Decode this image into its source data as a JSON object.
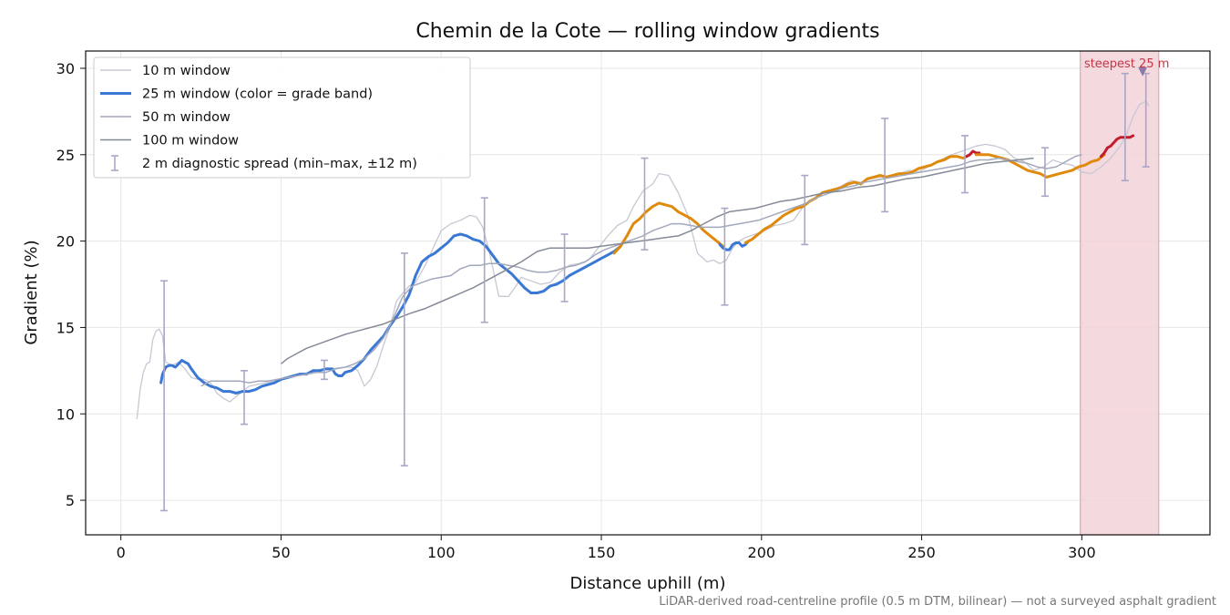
{
  "chart_data": {
    "type": "line",
    "title": "Chemin de la Cote — rolling window gradients",
    "xlabel": "Distance uphill (m)",
    "ylabel": "Gradient (%)",
    "xlim": [
      -11,
      340
    ],
    "ylim": [
      3,
      31
    ],
    "xticks": [
      0,
      50,
      100,
      150,
      200,
      250,
      300
    ],
    "yticks": [
      5,
      10,
      15,
      20,
      25,
      30
    ],
    "grid": true,
    "legend_position": "top-left",
    "footnote": "LiDAR-derived road-centreline profile (0.5 m DTM, bilinear) — not a surveyed asphalt gradient",
    "colors": {
      "w10": "#c8c8d4",
      "w50": "#a3a9bb",
      "w100": "#858a98",
      "band_blue": "#3a78d4",
      "band_orange": "#df8a0d",
      "band_red": "#c01e2e",
      "spread": "#a9a6c6",
      "highlight_fill": "#f2d2d8",
      "highlight_edge": "#e2a9b2",
      "marker": "#8c7aa8",
      "annotation": "#c53545"
    },
    "legend": [
      {
        "key": "w10",
        "label": "10 m window"
      },
      {
        "key": "w25",
        "label": "25 m window (color = grade band)"
      },
      {
        "key": "w50",
        "label": "50 m window"
      },
      {
        "key": "w100",
        "label": "100 m window"
      },
      {
        "key": "spread",
        "label": "2 m diagnostic spread (min–max, ±12 m)"
      }
    ],
    "highlight": {
      "label": "steepest 25 m",
      "x_start": 299.5,
      "x_end": 324,
      "marker_x": 319,
      "marker_y": 29.8
    },
    "series": [
      {
        "name": "10 m window",
        "key": "w10",
        "x": [
          5,
          6,
          7,
          8,
          9,
          10,
          11,
          12,
          13,
          14,
          16,
          18,
          20,
          22,
          24,
          26,
          28,
          30,
          32,
          34,
          36,
          38,
          40,
          45,
          50,
          55,
          60,
          65,
          70,
          72,
          74,
          76,
          78,
          80,
          82,
          84,
          86,
          88,
          90,
          92,
          95,
          98,
          100,
          103,
          106,
          109,
          111,
          113,
          115,
          118,
          121,
          123,
          125,
          128,
          131,
          134,
          137,
          140,
          143,
          146,
          149,
          152,
          155,
          158,
          160,
          163,
          166,
          168,
          171,
          174,
          177,
          180,
          183,
          185,
          187,
          189,
          191,
          193,
          195,
          198,
          201,
          204,
          207,
          210,
          213,
          216,
          219,
          222,
          225,
          228,
          231,
          234,
          237,
          240,
          243,
          246,
          249,
          252,
          255,
          258,
          261,
          264,
          267,
          270,
          273,
          276,
          279,
          282,
          285,
          288,
          291,
          294,
          297,
          300,
          303,
          306,
          309,
          312,
          314,
          316,
          318,
          320,
          321
        ],
        "y": [
          9.7,
          11.4,
          12.4,
          12.9,
          13.0,
          14.3,
          14.8,
          14.9,
          14.5,
          13.0,
          12.8,
          13.0,
          12.6,
          12.1,
          12.0,
          12.0,
          11.8,
          11.2,
          10.9,
          10.7,
          11.0,
          11.3,
          11.6,
          11.8,
          12.0,
          12.2,
          12.4,
          12.6,
          12.7,
          12.7,
          12.5,
          11.6,
          12.0,
          12.8,
          14.0,
          15.0,
          16.5,
          17.0,
          17.4,
          17.6,
          18.6,
          19.8,
          20.6,
          21.0,
          21.2,
          21.5,
          21.4,
          20.8,
          19.4,
          16.8,
          16.8,
          17.3,
          17.9,
          17.7,
          17.5,
          17.6,
          18.2,
          18.6,
          18.7,
          18.9,
          19.6,
          20.3,
          20.9,
          21.2,
          22.0,
          22.9,
          23.3,
          23.9,
          23.8,
          22.8,
          21.5,
          19.3,
          18.8,
          18.9,
          18.7,
          18.9,
          19.6,
          20.0,
          20.2,
          20.4,
          20.6,
          20.9,
          21.0,
          21.2,
          22.0,
          22.4,
          22.8,
          22.9,
          23.2,
          23.5,
          23.4,
          23.6,
          23.7,
          23.8,
          23.9,
          24.1,
          24.0,
          24.3,
          24.6,
          24.9,
          25.1,
          25.3,
          25.5,
          25.6,
          25.5,
          25.3,
          24.8,
          24.6,
          24.1,
          24.3,
          24.7,
          24.5,
          24.4,
          24.0,
          23.9,
          24.3,
          24.8,
          25.5,
          26.2,
          27.2,
          27.9,
          28.1,
          27.8
        ]
      },
      {
        "name": "25 m window (color = grade band)",
        "key": "w25",
        "segments": [
          {
            "band": "blue",
            "x": [
              12.5,
              13,
              14,
              15,
              16,
              17,
              18,
              19,
              20,
              21,
              22,
              24,
              26,
              28,
              30,
              32,
              34,
              36,
              38,
              40,
              42,
              44,
              46,
              48,
              50,
              52,
              54,
              56,
              58,
              60,
              62,
              64,
              65,
              66,
              67,
              68,
              69,
              70,
              72,
              74,
              76,
              78,
              80,
              82,
              84,
              86,
              88,
              90,
              92,
              94,
              96,
              98,
              100,
              102,
              104,
              106,
              108,
              110,
              112,
              114,
              116,
              118,
              120,
              122,
              124,
              126,
              128,
              130,
              132,
              134,
              136,
              138,
              140,
              142,
              144,
              146,
              148,
              150,
              152,
              154,
              156
            ],
            "y": [
              11.8,
              12.3,
              12.7,
              12.8,
              12.8,
              12.7,
              12.9,
              13.1,
              13.0,
              12.9,
              12.6,
              12.1,
              11.8,
              11.6,
              11.5,
              11.3,
              11.3,
              11.2,
              11.3,
              11.3,
              11.4,
              11.6,
              11.7,
              11.8,
              12.0,
              12.1,
              12.2,
              12.3,
              12.3,
              12.5,
              12.5,
              12.6,
              12.6,
              12.6,
              12.3,
              12.2,
              12.2,
              12.4,
              12.5,
              12.8,
              13.2,
              13.7,
              14.1,
              14.5,
              15.1,
              15.6,
              16.2,
              16.9,
              18.0,
              18.8,
              19.1,
              19.3,
              19.6,
              19.9,
              20.3,
              20.4,
              20.3,
              20.1,
              20.0,
              19.7,
              19.2,
              18.7,
              18.4,
              18.1,
              17.7,
              17.3,
              17.0,
              17.0,
              17.1,
              17.4,
              17.5,
              17.7,
              18.0,
              18.2,
              18.4,
              18.6,
              18.8,
              19.0,
              19.2,
              19.4,
              19.7
            ]
          },
          {
            "band": "orange",
            "x": [
              154,
              156,
              158,
              160,
              162,
              164,
              166,
              168,
              170,
              172,
              174,
              176,
              178,
              180,
              182,
              184,
              186,
              188
            ],
            "y": [
              19.3,
              19.7,
              20.3,
              21.0,
              21.3,
              21.7,
              22.0,
              22.2,
              22.1,
              22.0,
              21.7,
              21.5,
              21.3,
              21.0,
              20.6,
              20.3,
              20.0,
              19.7
            ]
          },
          {
            "band": "blue",
            "x": [
              187,
              188,
              189,
              190,
              191,
              192,
              193,
              194,
              195,
              196
            ],
            "y": [
              19.8,
              19.6,
              19.5,
              19.5,
              19.8,
              19.9,
              19.9,
              19.7,
              19.8,
              20.0
            ]
          },
          {
            "band": "orange",
            "x": [
              195,
              197,
              199,
              201,
              203,
              205,
              207,
              209,
              211,
              213,
              215,
              217,
              219,
              221,
              223,
              225,
              227,
              229,
              231,
              233,
              235,
              237,
              239,
              241,
              243,
              245,
              247,
              249,
              251,
              253,
              255,
              257,
              259,
              261,
              263,
              265
            ],
            "y": [
              19.9,
              20.1,
              20.4,
              20.7,
              20.9,
              21.2,
              21.5,
              21.7,
              21.9,
              22.0,
              22.3,
              22.5,
              22.8,
              22.9,
              23.0,
              23.1,
              23.3,
              23.4,
              23.3,
              23.6,
              23.7,
              23.8,
              23.7,
              23.8,
              23.9,
              23.9,
              24.0,
              24.2,
              24.3,
              24.4,
              24.6,
              24.7,
              24.9,
              24.9,
              24.8,
              25.0
            ]
          },
          {
            "band": "red",
            "x": [
              264,
              265,
              266,
              267,
              268
            ],
            "y": [
              24.9,
              25.0,
              25.2,
              25.1,
              25.1
            ]
          },
          {
            "band": "orange",
            "x": [
              267,
              269,
              271,
              273,
              275,
              277,
              279,
              281,
              283,
              285,
              287,
              289,
              291,
              293,
              295,
              297,
              299,
              301,
              303,
              305,
              307
            ],
            "y": [
              25.0,
              25.0,
              25.0,
              24.9,
              24.8,
              24.7,
              24.5,
              24.3,
              24.1,
              24.0,
              23.9,
              23.7,
              23.8,
              23.9,
              24.0,
              24.1,
              24.3,
              24.4,
              24.6,
              24.7,
              25.0
            ]
          },
          {
            "band": "red",
            "x": [
              306,
              307,
              308,
              309,
              310,
              311,
              312,
              313,
              314,
              315,
              316
            ],
            "y": [
              24.9,
              25.1,
              25.4,
              25.5,
              25.7,
              25.9,
              26.0,
              26.0,
              26.0,
              26.0,
              26.1
            ]
          }
        ]
      },
      {
        "name": "50 m window",
        "key": "w50",
        "x": [
          25,
          28,
          31,
          34,
          37,
          40,
          43,
          46,
          49,
          52,
          55,
          58,
          61,
          64,
          67,
          70,
          73,
          76,
          79,
          82,
          85,
          88,
          91,
          94,
          97,
          100,
          103,
          106,
          109,
          112,
          115,
          118,
          121,
          124,
          127,
          130,
          133,
          136,
          139,
          142,
          145,
          148,
          151,
          154,
          157,
          160,
          163,
          166,
          169,
          172,
          175,
          178,
          181,
          184,
          187,
          190,
          193,
          196,
          199,
          202,
          205,
          208,
          211,
          214,
          217,
          220,
          223,
          226,
          229,
          232,
          235,
          238,
          241,
          244,
          247,
          250,
          253,
          256,
          259,
          262,
          265,
          268,
          271,
          274,
          277,
          280,
          283,
          286,
          289,
          292,
          295,
          298,
          300
        ],
        "y": [
          11.6,
          11.9,
          11.9,
          11.9,
          11.9,
          11.8,
          11.9,
          11.9,
          12.0,
          12.1,
          12.2,
          12.3,
          12.4,
          12.4,
          12.6,
          12.7,
          12.9,
          13.2,
          13.7,
          14.4,
          15.5,
          16.8,
          17.4,
          17.6,
          17.8,
          17.9,
          18.0,
          18.4,
          18.6,
          18.6,
          18.7,
          18.7,
          18.6,
          18.5,
          18.3,
          18.2,
          18.2,
          18.3,
          18.5,
          18.6,
          18.8,
          19.2,
          19.5,
          19.7,
          19.9,
          20.1,
          20.3,
          20.6,
          20.8,
          21.0,
          21.0,
          20.9,
          20.8,
          20.8,
          20.8,
          20.9,
          21.0,
          21.1,
          21.2,
          21.4,
          21.6,
          21.8,
          22.0,
          22.2,
          22.5,
          22.7,
          22.9,
          23.1,
          23.2,
          23.4,
          23.5,
          23.6,
          23.7,
          23.8,
          23.9,
          24.0,
          24.1,
          24.2,
          24.3,
          24.4,
          24.6,
          24.7,
          24.7,
          24.8,
          24.7,
          24.6,
          24.5,
          24.3,
          24.2,
          24.3,
          24.6,
          24.9,
          25.0
        ]
      },
      {
        "name": "100 m window",
        "key": "w100",
        "x": [
          50,
          52,
          55,
          58,
          61,
          64,
          67,
          70,
          74,
          78,
          82,
          86,
          90,
          95,
          100,
          105,
          110,
          115,
          120,
          125,
          130,
          134,
          138,
          142,
          146,
          150,
          154,
          158,
          162,
          166,
          170,
          174,
          178,
          182,
          186,
          190,
          194,
          198,
          202,
          206,
          210,
          215,
          220,
          225,
          230,
          235,
          240,
          245,
          250,
          255,
          260,
          265,
          270,
          275,
          280,
          285
        ],
        "y": [
          12.9,
          13.2,
          13.5,
          13.8,
          14.0,
          14.2,
          14.4,
          14.6,
          14.8,
          15.0,
          15.2,
          15.5,
          15.8,
          16.1,
          16.5,
          16.9,
          17.3,
          17.8,
          18.3,
          18.8,
          19.4,
          19.6,
          19.6,
          19.6,
          19.6,
          19.7,
          19.8,
          19.9,
          20.0,
          20.1,
          20.2,
          20.3,
          20.6,
          21.0,
          21.4,
          21.7,
          21.8,
          21.9,
          22.1,
          22.3,
          22.4,
          22.6,
          22.8,
          22.9,
          23.1,
          23.2,
          23.4,
          23.6,
          23.7,
          23.9,
          24.1,
          24.3,
          24.5,
          24.6,
          24.7,
          24.8
        ]
      }
    ],
    "spread_bars": [
      {
        "x": 13.5,
        "ymin": 4.4,
        "ymax": 17.7
      },
      {
        "x": 38.5,
        "ymin": 9.4,
        "ymax": 12.5
      },
      {
        "x": 63.5,
        "ymin": 12.0,
        "ymax": 13.1
      },
      {
        "x": 88.5,
        "ymin": 7.0,
        "ymax": 19.3
      },
      {
        "x": 113.5,
        "ymin": 15.3,
        "ymax": 22.5
      },
      {
        "x": 138.5,
        "ymin": 16.5,
        "ymax": 20.4
      },
      {
        "x": 163.5,
        "ymin": 19.5,
        "ymax": 24.8
      },
      {
        "x": 188.5,
        "ymin": 16.3,
        "ymax": 21.9
      },
      {
        "x": 213.5,
        "ymin": 19.8,
        "ymax": 23.8
      },
      {
        "x": 238.5,
        "ymin": 21.7,
        "ymax": 27.1
      },
      {
        "x": 263.5,
        "ymin": 22.8,
        "ymax": 26.1
      },
      {
        "x": 288.5,
        "ymin": 22.6,
        "ymax": 25.4
      },
      {
        "x": 313.5,
        "ymin": 23.5,
        "ymax": 29.7
      },
      {
        "x": 320,
        "ymin": 24.3,
        "ymax": 29.7
      }
    ]
  }
}
